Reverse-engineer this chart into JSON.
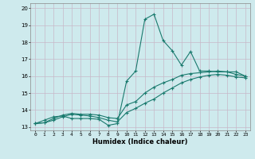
{
  "xlabel": "Humidex (Indice chaleur)",
  "xlim": [
    -0.5,
    23.5
  ],
  "ylim": [
    12.8,
    20.3
  ],
  "xticks": [
    0,
    1,
    2,
    3,
    4,
    5,
    6,
    7,
    8,
    9,
    10,
    11,
    12,
    13,
    14,
    15,
    16,
    17,
    18,
    19,
    20,
    21,
    22,
    23
  ],
  "yticks": [
    13,
    14,
    15,
    16,
    17,
    18,
    19,
    20
  ],
  "bg_color": "#ceeaed",
  "grid_color": "#c8b8c8",
  "line_color": "#1a7a6e",
  "line1_x": [
    0,
    1,
    2,
    3,
    4,
    5,
    6,
    7,
    8,
    9,
    10,
    11,
    12,
    13,
    14,
    15,
    16,
    17,
    18,
    19,
    20,
    21,
    22,
    23
  ],
  "line1_y": [
    13.2,
    13.4,
    13.6,
    13.65,
    13.5,
    13.5,
    13.5,
    13.45,
    13.1,
    13.2,
    15.7,
    16.3,
    19.35,
    19.65,
    18.1,
    17.5,
    16.65,
    17.45,
    16.3,
    16.3,
    16.25,
    16.25,
    16.25,
    16.0
  ],
  "line2_x": [
    0,
    1,
    2,
    3,
    4,
    5,
    6,
    7,
    8,
    9,
    10,
    11,
    12,
    13,
    14,
    15,
    16,
    17,
    18,
    19,
    20,
    21,
    22,
    23
  ],
  "line2_y": [
    13.2,
    13.25,
    13.5,
    13.7,
    13.8,
    13.75,
    13.75,
    13.7,
    13.55,
    13.5,
    14.3,
    14.5,
    15.0,
    15.35,
    15.6,
    15.8,
    16.05,
    16.15,
    16.2,
    16.25,
    16.3,
    16.25,
    16.1,
    16.0
  ],
  "line3_x": [
    0,
    1,
    2,
    3,
    4,
    5,
    6,
    7,
    8,
    9,
    10,
    11,
    12,
    13,
    14,
    15,
    16,
    17,
    18,
    19,
    20,
    21,
    22,
    23
  ],
  "line3_y": [
    13.2,
    13.25,
    13.4,
    13.6,
    13.75,
    13.7,
    13.65,
    13.55,
    13.4,
    13.3,
    13.85,
    14.1,
    14.4,
    14.65,
    15.0,
    15.3,
    15.6,
    15.8,
    15.95,
    16.05,
    16.1,
    16.05,
    15.95,
    15.9
  ]
}
